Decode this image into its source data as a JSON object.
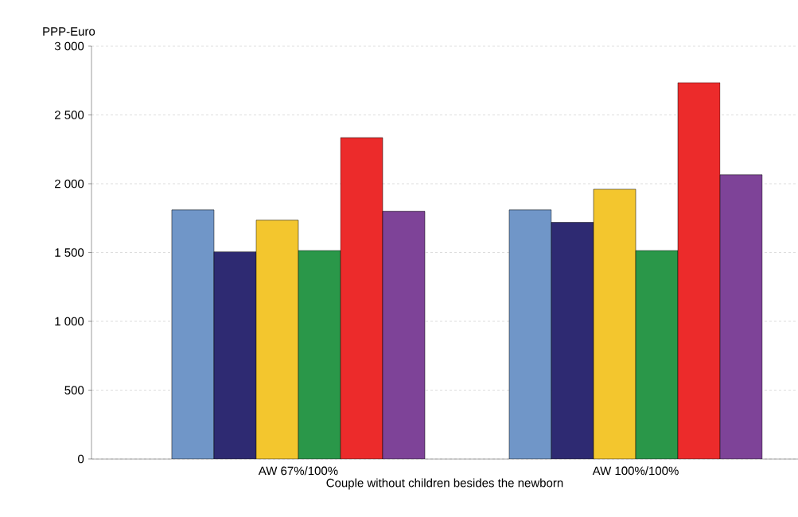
{
  "chart_data": {
    "type": "bar",
    "ylabel": "PPP-Euro",
    "xlabel": "Couple without children besides the newborn",
    "categories": [
      "AW 67%/100%",
      "AW 100%/100%"
    ],
    "series": [
      {
        "color": "#7096c8",
        "values": [
          1810,
          1810
        ]
      },
      {
        "color": "#2e2a72",
        "values": [
          1505,
          1720
        ]
      },
      {
        "color": "#f3c62e",
        "values": [
          1735,
          1960
        ]
      },
      {
        "color": "#2a9749",
        "values": [
          1515,
          1515
        ]
      },
      {
        "color": "#ec2b2b",
        "values": [
          2335,
          2735
        ]
      },
      {
        "color": "#7e4398",
        "values": [
          1800,
          2065
        ]
      }
    ],
    "ylim": [
      0,
      3000
    ],
    "yticks": [
      {
        "value": 0,
        "label": "0"
      },
      {
        "value": 500,
        "label": "500"
      },
      {
        "value": 1000,
        "label": "1 000"
      },
      {
        "value": 1500,
        "label": "1 500"
      },
      {
        "value": 2000,
        "label": "2 000"
      },
      {
        "value": 2500,
        "label": "2 500"
      },
      {
        "value": 3000,
        "label": "3 000"
      }
    ],
    "grid": "y"
  }
}
